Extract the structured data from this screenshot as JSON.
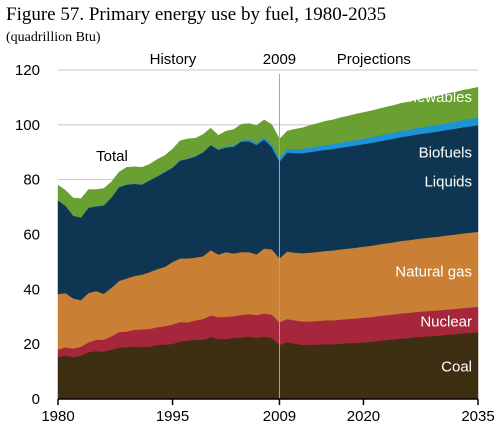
{
  "chart_data": {
    "type": "area",
    "stacked": true,
    "title": "Figure 57. Primary energy use by fuel, 1980-2035",
    "subtitle": "(quadrillion Btu)",
    "xlabel": "",
    "ylabel": "",
    "xlim": [
      1980,
      2035
    ],
    "ylim": [
      0,
      120
    ],
    "x_ticks": [
      1980,
      1995,
      2009,
      2020,
      2035
    ],
    "y_ticks": [
      0,
      20,
      40,
      60,
      80,
      100,
      120
    ],
    "divider_year": 2009,
    "period_labels": {
      "history": "History",
      "divider": "2009",
      "projections": "Projections"
    },
    "total_label": "Total",
    "grid": true,
    "legend": "inline",
    "x": [
      1980,
      1981,
      1982,
      1983,
      1984,
      1985,
      1986,
      1987,
      1988,
      1989,
      1990,
      1991,
      1992,
      1993,
      1994,
      1995,
      1996,
      1997,
      1998,
      1999,
      2000,
      2001,
      2002,
      2003,
      2004,
      2005,
      2006,
      2007,
      2008,
      2009,
      2010,
      2011,
      2012,
      2013,
      2014,
      2015,
      2016,
      2017,
      2018,
      2019,
      2020,
      2021,
      2022,
      2023,
      2024,
      2025,
      2026,
      2027,
      2028,
      2029,
      2030,
      2031,
      2032,
      2033,
      2034,
      2035
    ],
    "series": [
      {
        "name": "Coal",
        "color": "#3f2f12",
        "label_color": "#ffffff",
        "values": [
          15.4,
          15.9,
          15.3,
          15.9,
          17.1,
          17.5,
          17.3,
          18.0,
          18.8,
          18.9,
          19.2,
          19.0,
          19.1,
          19.8,
          19.9,
          20.1,
          21.0,
          21.4,
          21.6,
          21.6,
          22.6,
          21.9,
          21.9,
          22.3,
          22.5,
          22.8,
          22.4,
          22.7,
          22.4,
          19.7,
          20.8,
          20.2,
          19.8,
          19.8,
          19.9,
          20.0,
          20.0,
          20.2,
          20.4,
          20.5,
          20.7,
          20.9,
          21.2,
          21.5,
          21.8,
          22.1,
          22.3,
          22.6,
          22.8,
          23.0,
          23.2,
          23.5,
          23.7,
          24.0,
          24.2,
          24.4
        ]
      },
      {
        "name": "Nuclear",
        "color": "#a6263c",
        "label_color": "#ffffff",
        "values": [
          2.7,
          3.0,
          3.1,
          3.2,
          3.6,
          4.1,
          4.4,
          4.9,
          5.7,
          5.7,
          6.1,
          6.4,
          6.5,
          6.4,
          6.7,
          7.1,
          7.1,
          6.6,
          7.1,
          7.6,
          7.9,
          8.0,
          8.1,
          7.9,
          8.2,
          8.2,
          8.2,
          8.5,
          8.4,
          8.3,
          8.4,
          8.5,
          8.5,
          8.5,
          8.6,
          8.7,
          8.7,
          8.8,
          8.8,
          8.9,
          9.0,
          9.0,
          9.1,
          9.1,
          9.1,
          9.2,
          9.2,
          9.2,
          9.2,
          9.2,
          9.2,
          9.2,
          9.2,
          9.2,
          9.2,
          9.2
        ]
      },
      {
        "name": "Natural gas",
        "color": "#c97f34",
        "label_color": "#ffffff",
        "values": [
          20.2,
          19.7,
          18.3,
          17.0,
          18.0,
          17.8,
          16.7,
          17.7,
          18.6,
          19.4,
          19.6,
          20.0,
          20.7,
          21.2,
          21.6,
          22.8,
          23.2,
          23.3,
          22.9,
          22.9,
          23.8,
          22.8,
          23.6,
          22.9,
          22.9,
          22.6,
          22.2,
          23.7,
          23.8,
          23.3,
          24.6,
          24.7,
          24.9,
          25.1,
          25.2,
          25.3,
          25.5,
          25.6,
          25.7,
          25.8,
          25.9,
          26.0,
          26.1,
          26.2,
          26.3,
          26.4,
          26.5,
          26.6,
          26.7,
          26.8,
          26.9,
          27.0,
          27.1,
          27.2,
          27.3,
          27.4
        ]
      },
      {
        "name": "Liquids",
        "color": "#0e3653",
        "label_color": "#ffffff",
        "values": [
          34.2,
          31.9,
          30.2,
          30.1,
          31.1,
          30.9,
          32.2,
          32.9,
          34.2,
          34.2,
          33.6,
          32.8,
          33.5,
          33.8,
          34.6,
          34.4,
          35.7,
          36.3,
          36.9,
          37.9,
          38.3,
          38.2,
          38.2,
          38.9,
          40.3,
          40.4,
          39.9,
          39.7,
          37.3,
          35.3,
          36.1,
          36.3,
          36.5,
          36.7,
          36.8,
          36.9,
          37.0,
          37.1,
          37.2,
          37.3,
          37.4,
          37.5,
          37.6,
          37.7,
          37.8,
          37.9,
          38.0,
          38.1,
          38.2,
          38.3,
          38.4,
          38.5,
          38.6,
          38.7,
          38.8,
          38.9
        ]
      },
      {
        "name": "Biofuels",
        "color": "#1d93d6",
        "label_color": "#ffffff",
        "values": [
          0.0,
          0.0,
          0.0,
          0.1,
          0.1,
          0.1,
          0.1,
          0.1,
          0.1,
          0.1,
          0.1,
          0.1,
          0.1,
          0.1,
          0.2,
          0.2,
          0.2,
          0.2,
          0.2,
          0.2,
          0.2,
          0.2,
          0.3,
          0.4,
          0.5,
          0.6,
          0.7,
          0.9,
          1.1,
          1.3,
          1.4,
          1.5,
          1.6,
          1.7,
          1.7,
          1.8,
          1.8,
          1.9,
          1.9,
          2.0,
          2.0,
          2.1,
          2.1,
          2.2,
          2.2,
          2.3,
          2.3,
          2.4,
          2.4,
          2.5,
          2.5,
          2.6,
          2.6,
          2.7,
          2.7,
          2.8
        ]
      },
      {
        "name": "Renewables",
        "color": "#6a9f32",
        "label_color": "#ffffff",
        "values": [
          5.5,
          5.6,
          6.4,
          6.8,
          6.5,
          6.0,
          6.1,
          5.6,
          5.4,
          6.2,
          6.1,
          6.2,
          5.7,
          6.1,
          5.8,
          6.6,
          7.0,
          7.1,
          6.4,
          6.3,
          6.0,
          5.1,
          5.6,
          5.9,
          5.8,
          5.9,
          6.4,
          6.3,
          7.1,
          6.9,
          6.4,
          7.2,
          7.6,
          8.0,
          8.3,
          8.6,
          8.8,
          9.0,
          9.2,
          9.4,
          9.5,
          9.6,
          9.7,
          9.8,
          9.9,
          10.0,
          10.1,
          10.2,
          10.3,
          10.4,
          10.5,
          10.6,
          10.7,
          10.8,
          10.9,
          11.0
        ]
      }
    ]
  }
}
